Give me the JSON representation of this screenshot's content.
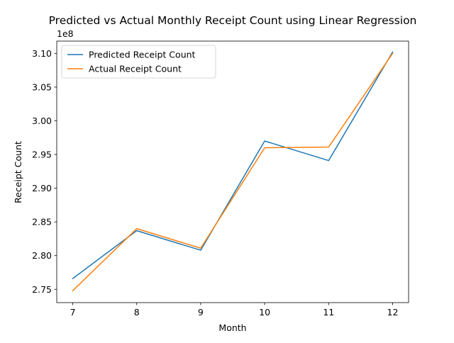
{
  "chart_data": {
    "type": "line",
    "title": "Predicted vs Actual Monthly Receipt Count using Linear Regression",
    "xlabel": "Month",
    "ylabel": "Receipt Count",
    "y_offset_label": "1e8",
    "y_scale_factor": 100000000,
    "x": [
      7,
      8,
      9,
      10,
      11,
      12
    ],
    "xlim": [
      6.75,
      12.25
    ],
    "ylim": [
      2.7303,
      3.1182
    ],
    "x_ticks": [
      7,
      8,
      9,
      10,
      11,
      12
    ],
    "y_ticks": [
      2.75,
      2.8,
      2.85,
      2.9,
      2.95,
      3.0,
      3.05,
      3.1
    ],
    "grid": false,
    "legend_position": "upper-left",
    "series": [
      {
        "name": "Predicted Receipt Count",
        "color": "#1f77b4",
        "values": [
          2.766,
          2.837,
          2.808,
          2.97,
          2.941,
          3.102
        ]
      },
      {
        "name": "Actual Receipt Count",
        "color": "#ff7f0e",
        "values": [
          2.748,
          2.84,
          2.811,
          2.96,
          2.961,
          3.1
        ]
      }
    ]
  }
}
